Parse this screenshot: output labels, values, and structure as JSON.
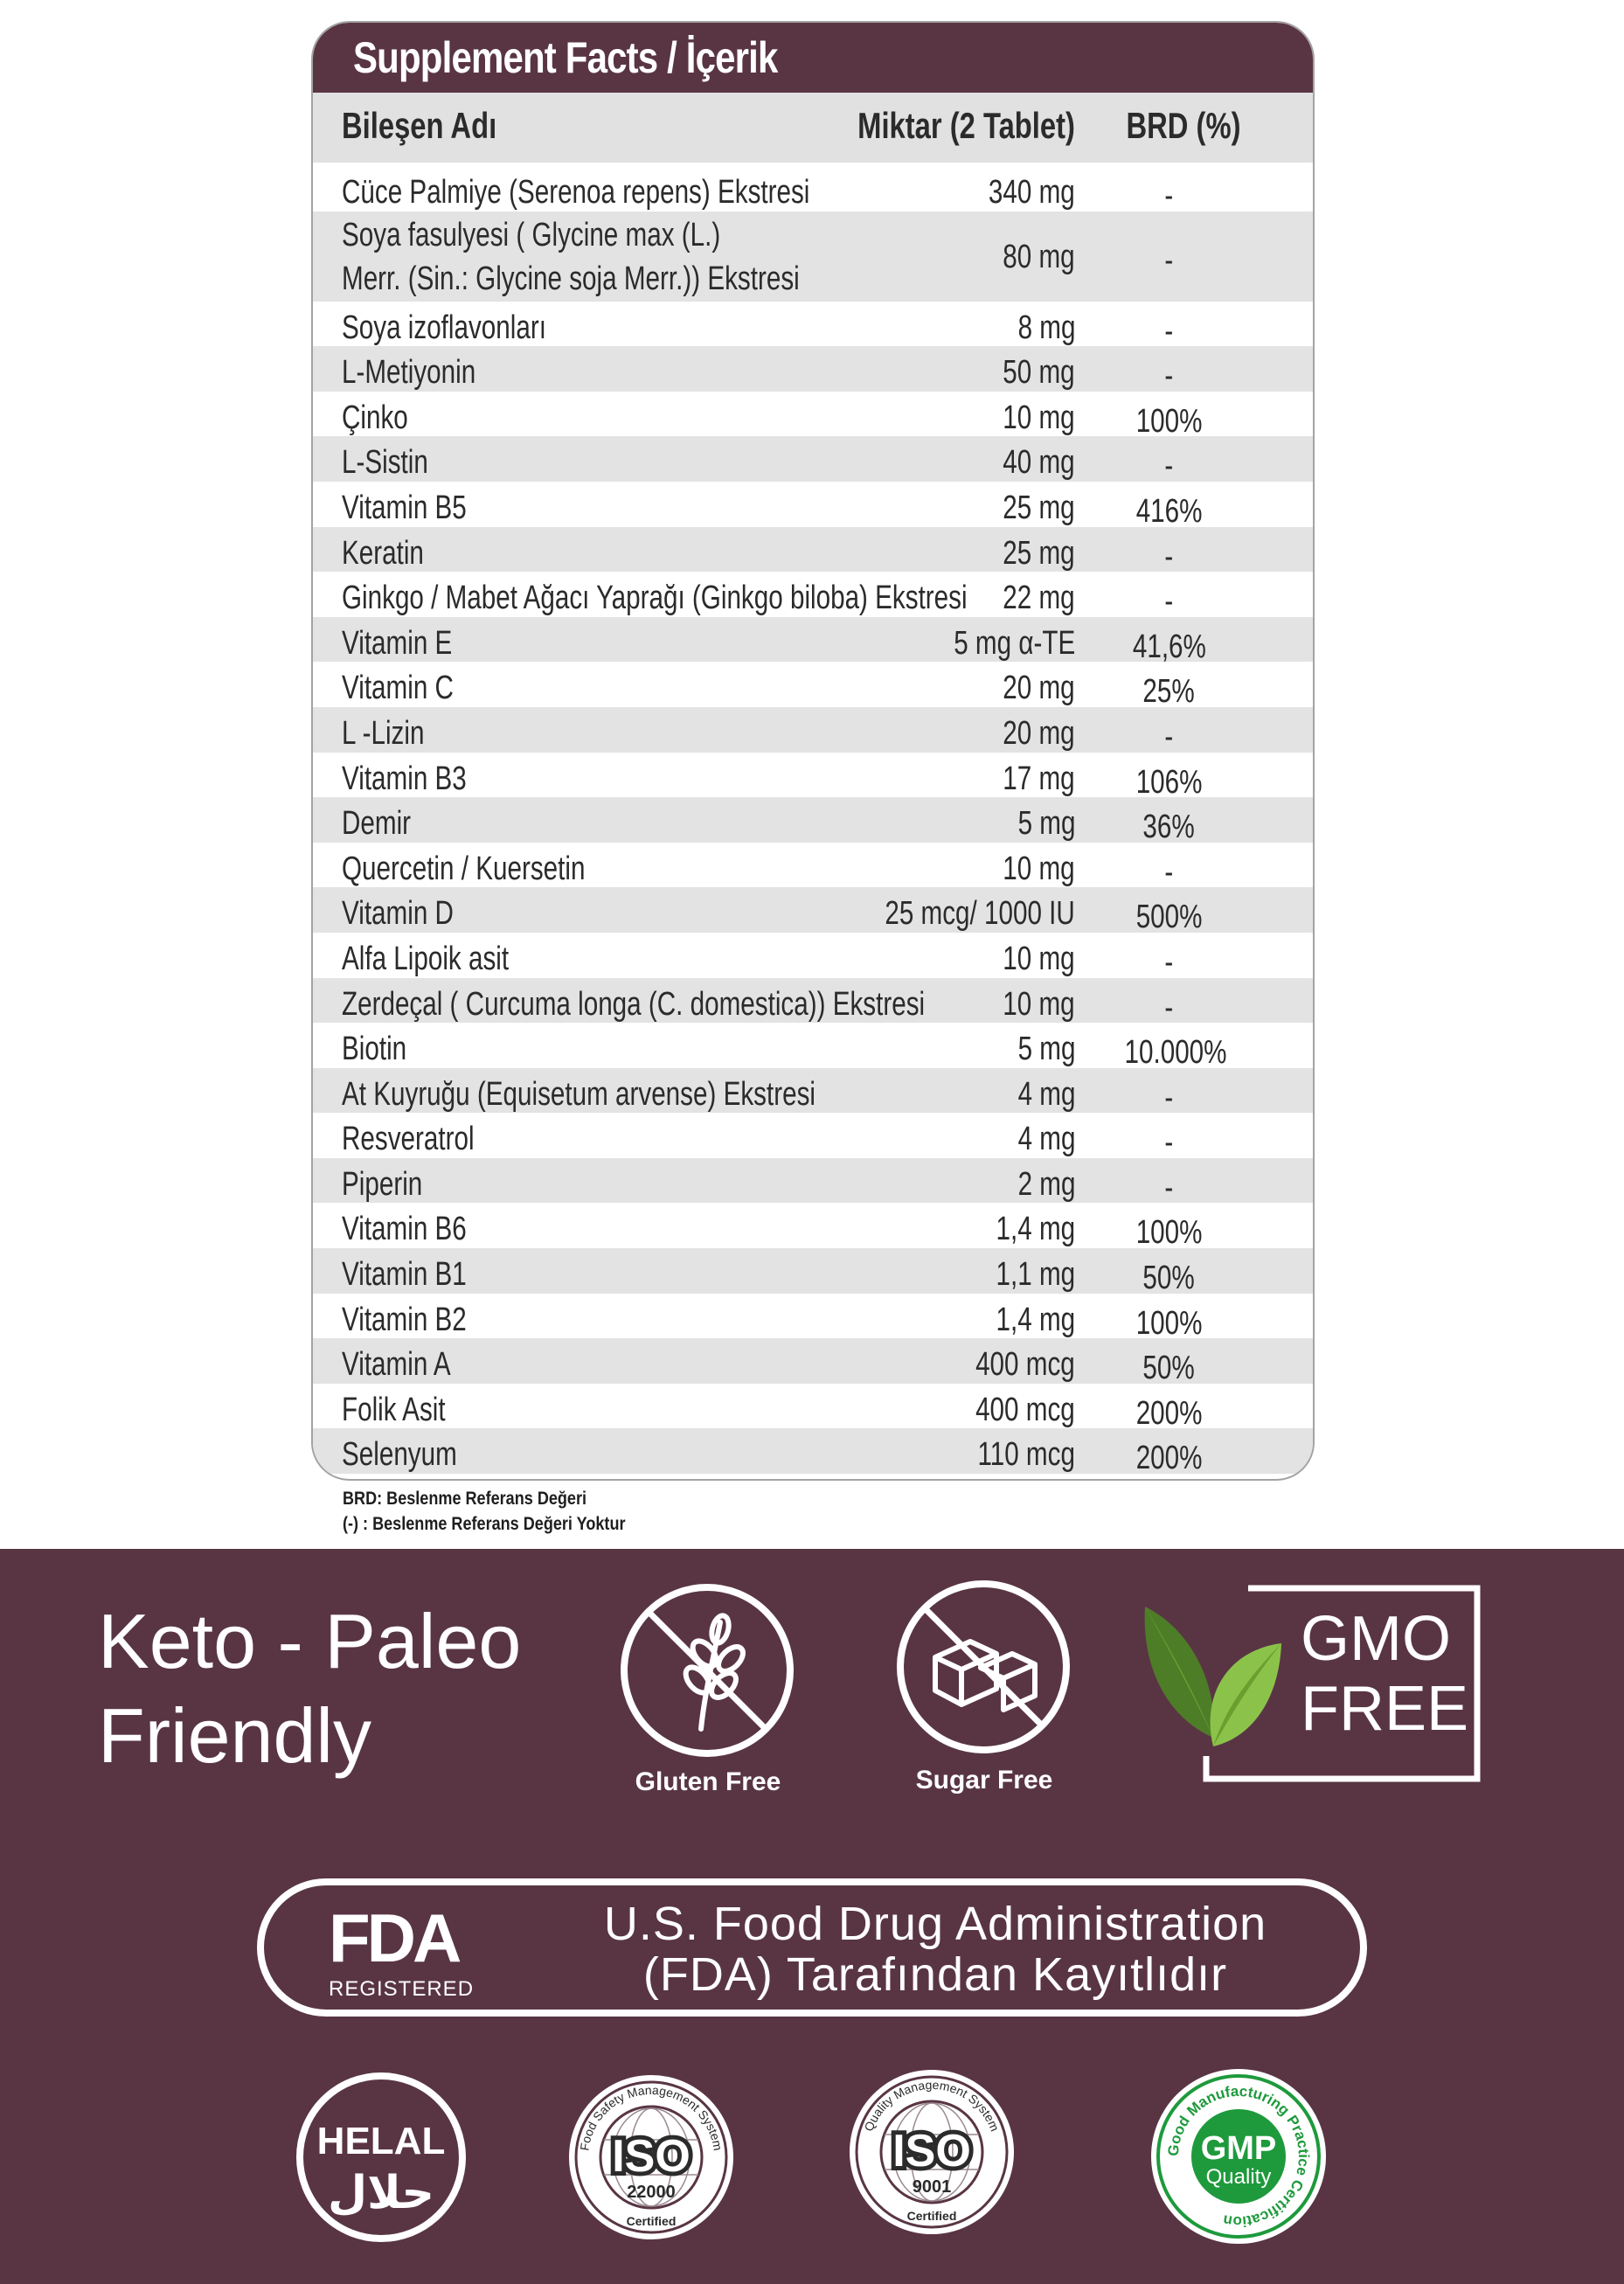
{
  "facts": {
    "title": "Supplement Facts / İçerik",
    "headers": {
      "name": "Bileşen Adı",
      "amount": "Miktar (2 Tablet)",
      "brd": "BRD (%)"
    },
    "rows": [
      {
        "name": "Cüce Palmiye (Serenoa repens) Ekstresi",
        "amount": "340 mg",
        "brd": "-"
      },
      {
        "name": "Soya fasulyesi ( Glycine max (L.)\nMerr. (Sin.: Glycine soja Merr.)) Ekstresi",
        "amount": "80 mg",
        "brd": "-"
      },
      {
        "name": "Soya izoflavonları",
        "amount": "8 mg",
        "brd": "-"
      },
      {
        "name": "L-Metiyonin",
        "amount": "50 mg",
        "brd": "-"
      },
      {
        "name": "Çinko",
        "amount": "10 mg",
        "brd": "100%"
      },
      {
        "name": "L-Sistin",
        "amount": "40 mg",
        "brd": "-"
      },
      {
        "name": "Vitamin B5",
        "amount": "25 mg",
        "brd": "416%"
      },
      {
        "name": "Keratin",
        "amount": "25 mg",
        "brd": "-"
      },
      {
        "name": "Ginkgo / Mabet Ağacı Yaprağı (Ginkgo biloba) Ekstresi",
        "amount": "22 mg",
        "brd": "-"
      },
      {
        "name": "Vitamin E",
        "amount": "5 mg α-TE",
        "brd": "41,6%"
      },
      {
        "name": "Vitamin C",
        "amount": "20 mg",
        "brd": "25%"
      },
      {
        "name": "L -Lizin",
        "amount": "20 mg",
        "brd": "-"
      },
      {
        "name": "Vitamin B3",
        "amount": "17 mg",
        "brd": "106%"
      },
      {
        "name": "Demir",
        "amount": "5 mg",
        "brd": "36%"
      },
      {
        "name": "Quercetin / Kuersetin",
        "amount": "10 mg",
        "brd": "-"
      },
      {
        "name": "Vitamin D",
        "amount": "25 mcg/ 1000 IU",
        "brd": "500%"
      },
      {
        "name": "Alfa Lipoik asit",
        "amount": "10 mg",
        "brd": "-"
      },
      {
        "name": "Zerdeçal ( Curcuma longa (C. domestica)) Ekstresi",
        "amount": "10 mg",
        "brd": "-"
      },
      {
        "name": "Biotin",
        "amount": "5 mg",
        "brd": "10.000%"
      },
      {
        "name": "At Kuyruğu (Equisetum arvense) Ekstresi",
        "amount": "4 mg",
        "brd": "-"
      },
      {
        "name": "Resveratrol",
        "amount": "4 mg",
        "brd": "-"
      },
      {
        "name": "Piperin",
        "amount": "2 mg",
        "brd": "-"
      },
      {
        "name": "Vitamin B6",
        "amount": "1,4 mg",
        "brd": "100%"
      },
      {
        "name": "Vitamin B1",
        "amount": "1,1 mg",
        "brd": "50%"
      },
      {
        "name": "Vitamin B2",
        "amount": "1,4 mg",
        "brd": "100%"
      },
      {
        "name": "Vitamin A",
        "amount": "400 mcg",
        "brd": "50%"
      },
      {
        "name": "Folik Asit",
        "amount": "400 mcg",
        "brd": "200%"
      },
      {
        "name": "Selenyum",
        "amount": "110 mcg",
        "brd": "200%"
      }
    ],
    "footnotes": [
      "BRD: Beslenme Referans Değeri",
      "(-) : Beslenme Referans Değeri Yoktur"
    ]
  },
  "badges": {
    "keto_line1": "Keto - Paleo",
    "keto_line2": "Friendly",
    "gluten_free": "Gluten Free",
    "sugar_free": "Sugar Free",
    "gmo_line1": "GMO",
    "gmo_line2": "FREE",
    "fda_logo": "FDA",
    "fda_registered": "REGISTERED",
    "fda_line1": "U.S. Food Drug Administration",
    "fda_line2": "(FDA) Tarafından Kayıtlıdır",
    "helal_text": "HELAL",
    "helal_arabic": "حلال",
    "iso22000": {
      "ring": "Food Safety Management System",
      "mark": "ISO",
      "number": "22000",
      "certified": "Certified"
    },
    "iso9001": {
      "ring": "Quality Management System",
      "mark": "ISO",
      "number": "9001",
      "certified": "Certified"
    },
    "gmp": {
      "ring": "Good Manufacturing Practice Certification",
      "mark": "GMP",
      "quality": "Quality"
    }
  },
  "colors": {
    "brand_plum": "#593544",
    "row_stripe": "#e3e3e3",
    "leaf_green_dark": "#4e7d27",
    "leaf_green_light": "#8bc34a",
    "gmp_green": "#1e9a3c"
  }
}
